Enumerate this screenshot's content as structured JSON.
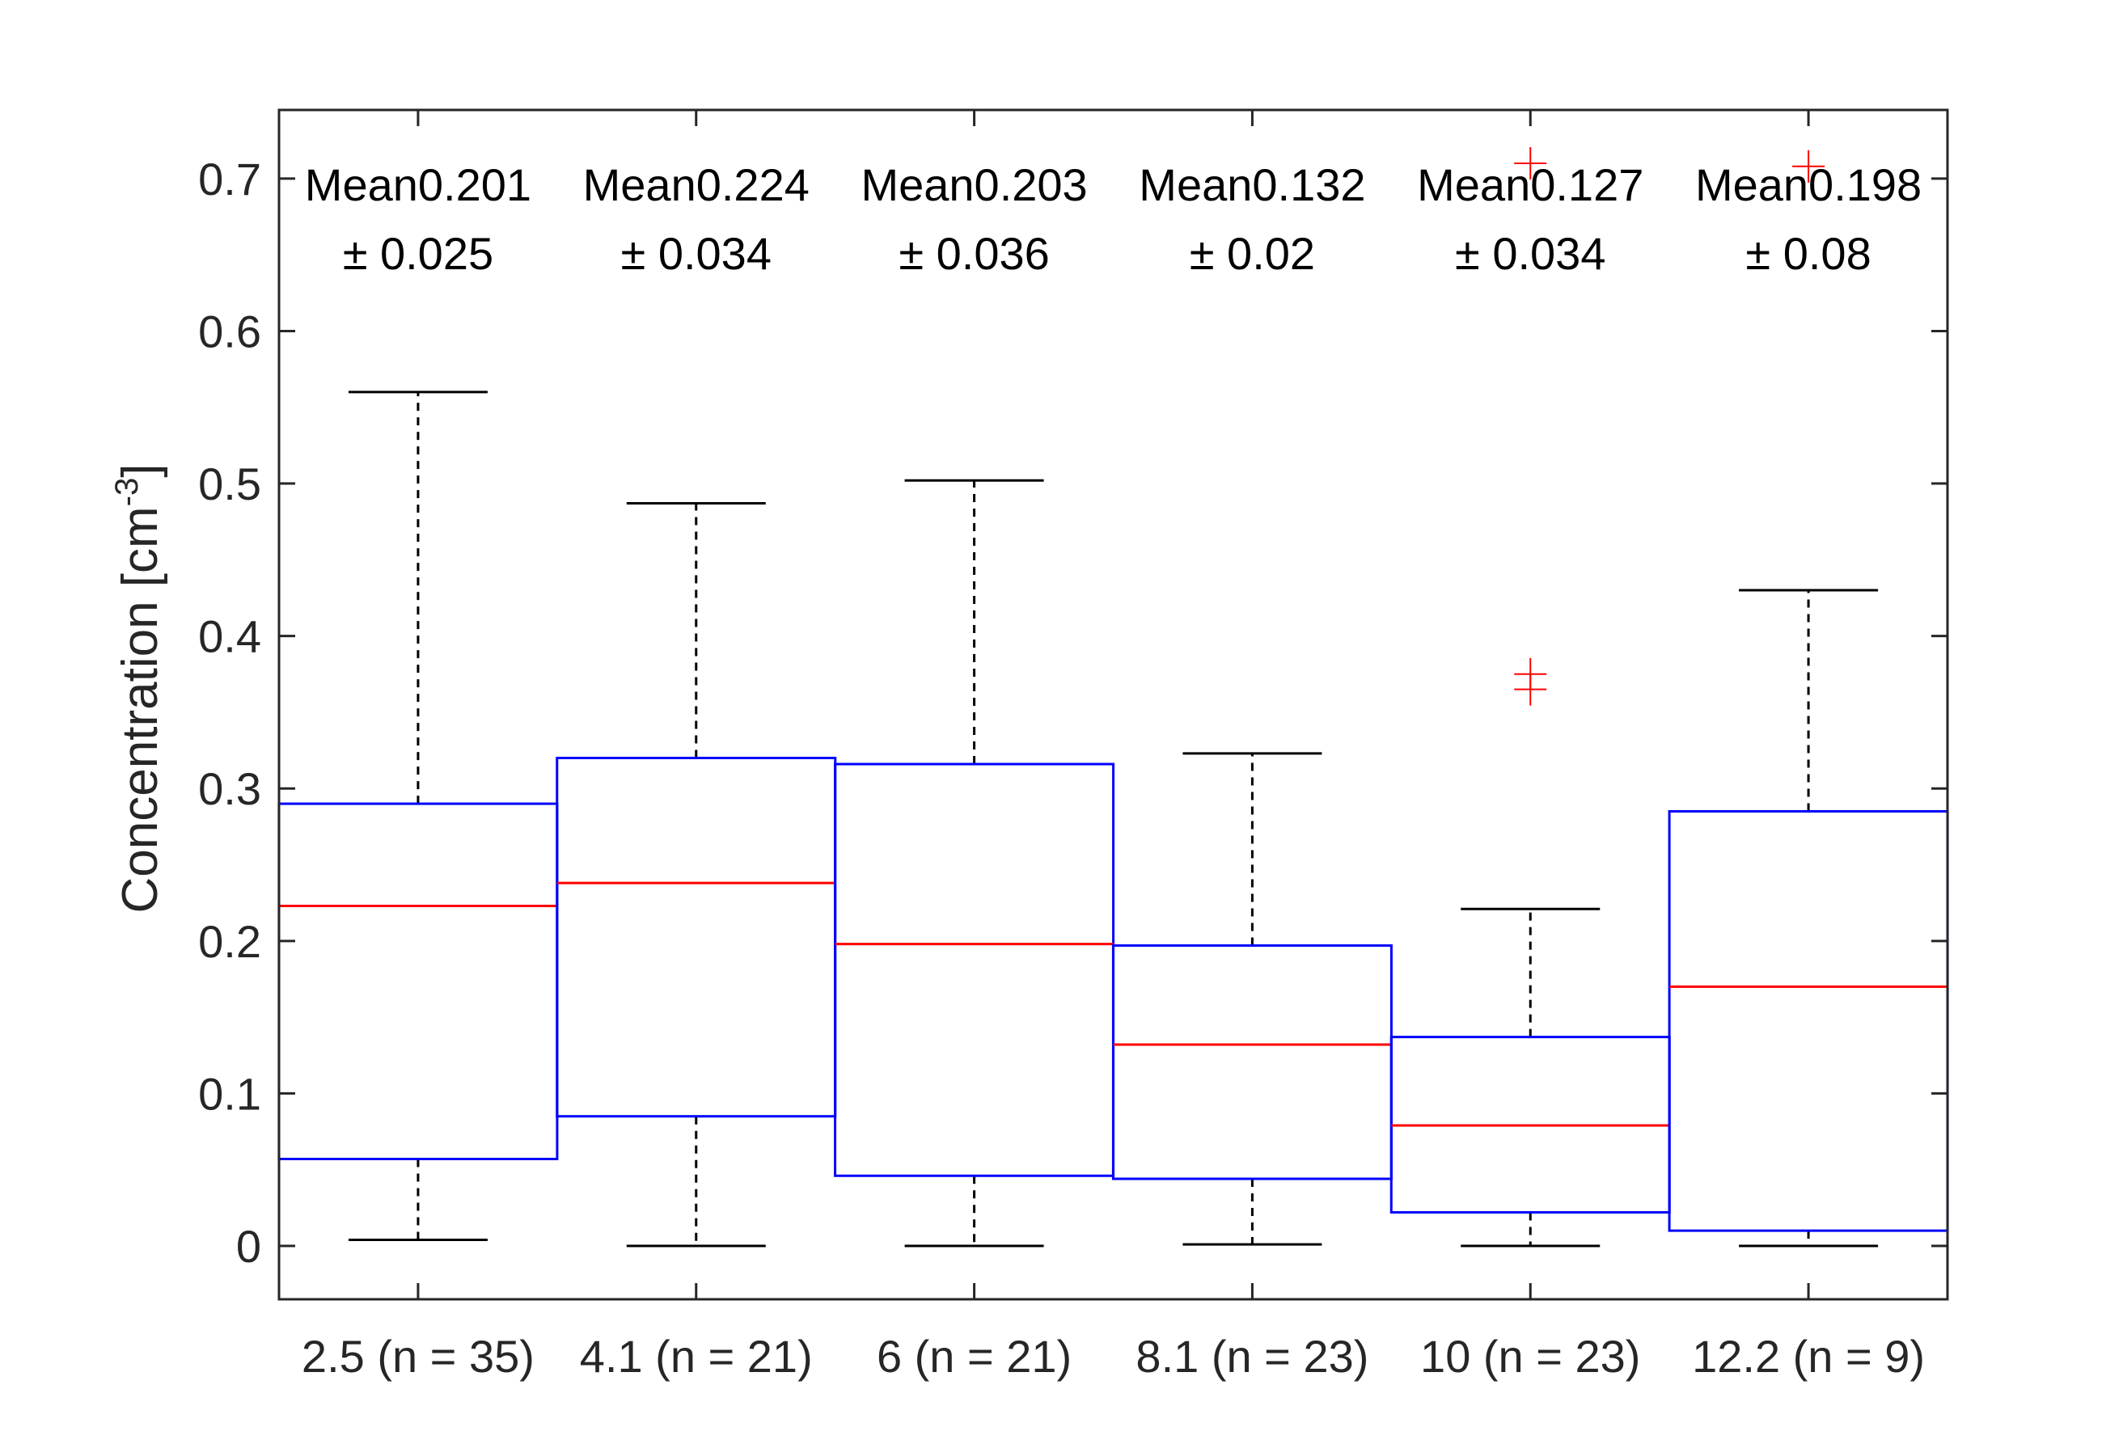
{
  "chart_data": {
    "type": "box",
    "xlabel": "",
    "ylabel": "Concentration [cm",
    "ylabel_superscript": "-3",
    "ylabel_close": "]",
    "ylim": [
      -0.035,
      0.745
    ],
    "yticks": [
      0,
      0.1,
      0.2,
      0.3,
      0.4,
      0.5,
      0.6,
      0.7
    ],
    "ytick_labels": [
      "0",
      "0.1",
      "0.2",
      "0.3",
      "0.4",
      "0.5",
      "0.6",
      "0.7"
    ],
    "categories": [
      "2.5 (n = 35)",
      "4.1 (n = 21)",
      "6 (n = 21)",
      "8.1 (n = 23)",
      "10 (n = 23)",
      "12.2 (n = 9)"
    ],
    "boxes": [
      {
        "whisker_low": 0.004,
        "q1": 0.057,
        "median": 0.223,
        "q3": 0.29,
        "whisker_high": 0.56,
        "outliers": []
      },
      {
        "whisker_low": 0.0,
        "q1": 0.085,
        "median": 0.238,
        "q3": 0.32,
        "whisker_high": 0.487,
        "outliers": []
      },
      {
        "whisker_low": 0.0,
        "q1": 0.046,
        "median": 0.198,
        "q3": 0.316,
        "whisker_high": 0.502,
        "outliers": []
      },
      {
        "whisker_low": 0.001,
        "q1": 0.044,
        "median": 0.132,
        "q3": 0.197,
        "whisker_high": 0.323,
        "outliers": []
      },
      {
        "whisker_low": 0.0,
        "q1": 0.022,
        "median": 0.079,
        "q3": 0.137,
        "whisker_high": 0.221,
        "outliers": [
          0.365,
          0.375,
          0.71
        ]
      },
      {
        "whisker_low": 0.0,
        "q1": 0.01,
        "median": 0.17,
        "q3": 0.285,
        "whisker_high": 0.43,
        "outliers": [
          0.708
        ]
      }
    ],
    "annotations": [
      {
        "line1": "Mean0.201",
        "line2": "± 0.025"
      },
      {
        "line1": "Mean0.224",
        "line2": "± 0.034"
      },
      {
        "line1": "Mean0.203",
        "line2": "± 0.036"
      },
      {
        "line1": "Mean0.132",
        "line2": "± 0.02"
      },
      {
        "line1": "Mean0.127",
        "line2": "± 0.034"
      },
      {
        "line1": "Mean0.198",
        "line2": "± 0.08"
      }
    ],
    "colors": {
      "box": "#0000ff",
      "median": "#ff0000",
      "whisker": "#000000",
      "outlier": "#ff0000",
      "axis": "#262626"
    },
    "grid": false
  }
}
